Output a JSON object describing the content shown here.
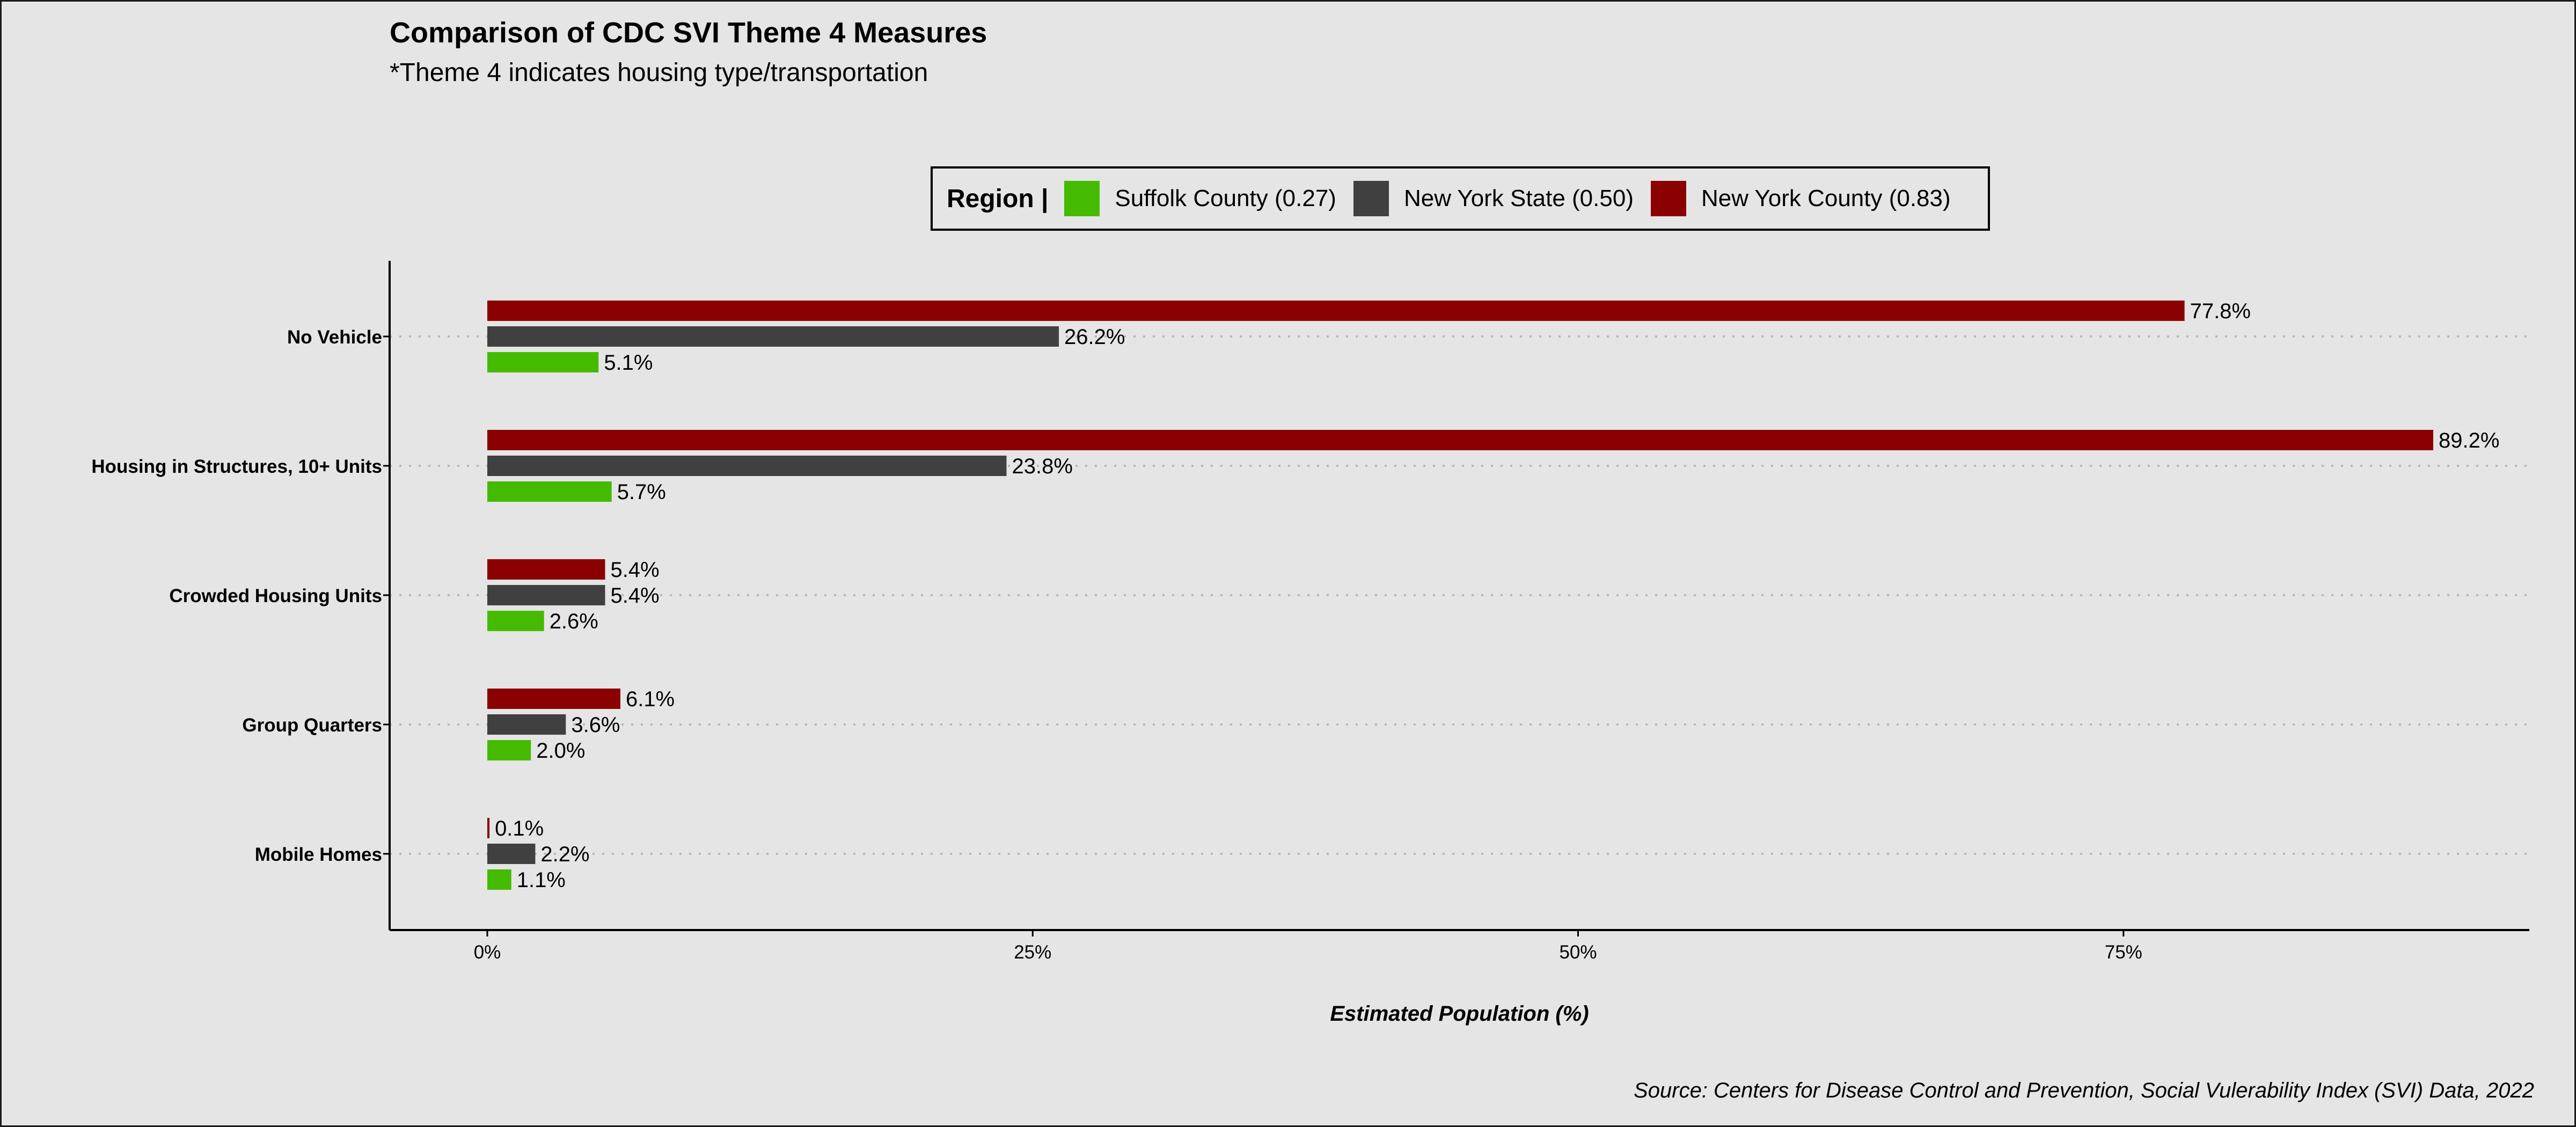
{
  "chart_data": {
    "type": "bar",
    "orientation": "horizontal",
    "title": "Comparison of CDC SVI Theme 4 Measures",
    "subtitle": "*Theme 4 indicates housing type/transportation",
    "xlabel": "Estimated Population (%)",
    "ylabel": "",
    "caption": "Source: Centers for Disease Control and Prevention, Social Vulerability Index (SVI) Data, 2022",
    "xlim": [
      0,
      93.5
    ],
    "xticks": [
      0,
      25,
      50,
      75
    ],
    "xtick_labels": [
      "0%",
      "25%",
      "50%",
      "75%"
    ],
    "grid": "dotted horizontal",
    "legend_placement": "top",
    "legend_title": "Region |",
    "categories": [
      "No Vehicle",
      "Housing in Structures, 10+ Units",
      "Crowded Housing Units",
      "Group Quarters",
      "Mobile Homes"
    ],
    "series": [
      {
        "name": "New York County (0.83)",
        "color": "#8b0000",
        "values": [
          77.8,
          89.2,
          5.4,
          6.1,
          0.1
        ],
        "labels": [
          "77.8%",
          "89.2%",
          "5.4%",
          "6.1%",
          "0.1%"
        ]
      },
      {
        "name": "New York State (0.50)",
        "color": "#404040",
        "values": [
          26.2,
          23.8,
          5.4,
          3.6,
          2.2
        ],
        "labels": [
          "26.2%",
          "23.8%",
          "5.4%",
          "3.6%",
          "2.2%"
        ]
      },
      {
        "name": "Suffolk County (0.27)",
        "color": "#44bb00",
        "values": [
          5.1,
          5.7,
          2.6,
          2.0,
          1.1
        ],
        "labels": [
          "5.1%",
          "5.7%",
          "2.6%",
          "2.0%",
          "1.1%"
        ]
      }
    ],
    "legend_order": [
      2,
      1,
      0
    ]
  }
}
